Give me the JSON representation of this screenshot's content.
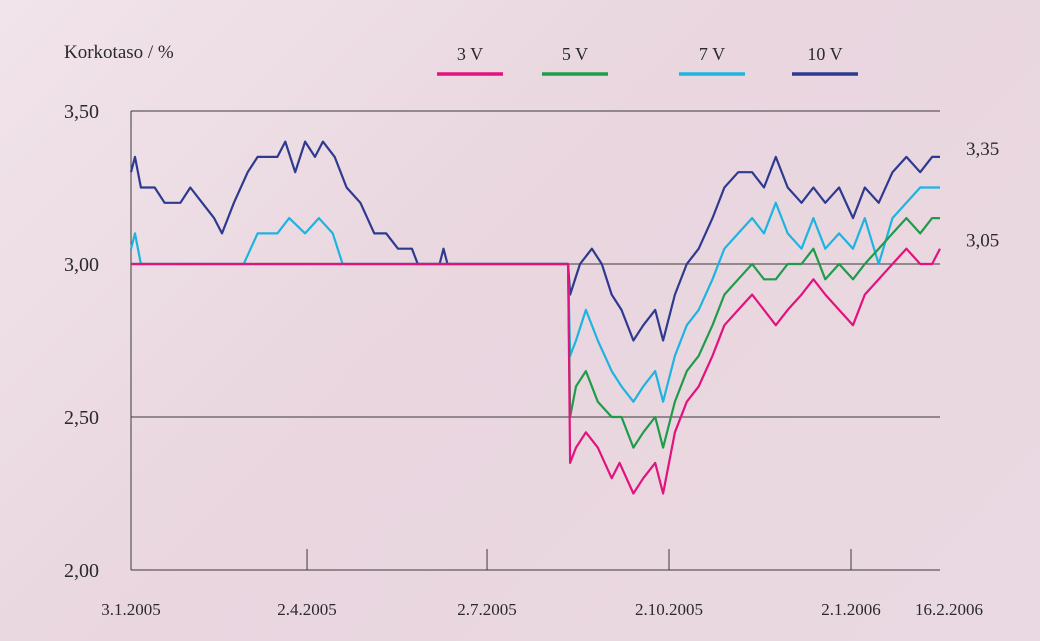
{
  "chart_data": {
    "type": "line",
    "ylabel": "Korkotaso / %",
    "ylim": [
      2.0,
      3.5
    ],
    "y_ticks": [
      "3,50",
      "3,00",
      "2,50",
      "2,00"
    ],
    "y_tick_values": [
      3.5,
      3.0,
      2.5,
      2.0
    ],
    "x_range": [
      "2005-01-03",
      "2006-02-16"
    ],
    "x_ticks": [
      "3.1.2005",
      "2.4.2005",
      "2.7.2005",
      "2.10.2005",
      "2.1.2006",
      "16.2.2006"
    ],
    "x_tick_dates": [
      "2005-01-03",
      "2005-04-02",
      "2005-07-02",
      "2005-10-02",
      "2006-01-02",
      "2006-02-16"
    ],
    "grid": "horizontal",
    "legend_position": "top",
    "end_labels": [
      "3,35",
      "3,05"
    ],
    "end_label_values": [
      3.35,
      3.05
    ],
    "series": [
      {
        "name": "3 V",
        "color": "#e2127e",
        "points": [
          [
            "2005-01-03",
            3.0
          ],
          [
            "2005-08-12",
            3.0
          ],
          [
            "2005-08-13",
            2.35
          ],
          [
            "2005-08-16",
            2.4
          ],
          [
            "2005-08-21",
            2.45
          ],
          [
            "2005-08-27",
            2.4
          ],
          [
            "2005-09-03",
            2.3
          ],
          [
            "2005-09-07",
            2.35
          ],
          [
            "2005-09-14",
            2.25
          ],
          [
            "2005-09-19",
            2.3
          ],
          [
            "2005-09-25",
            2.35
          ],
          [
            "2005-09-29",
            2.25
          ],
          [
            "2005-10-05",
            2.45
          ],
          [
            "2005-10-11",
            2.55
          ],
          [
            "2005-10-17",
            2.6
          ],
          [
            "2005-10-24",
            2.7
          ],
          [
            "2005-10-30",
            2.8
          ],
          [
            "2005-11-06",
            2.85
          ],
          [
            "2005-11-13",
            2.9
          ],
          [
            "2005-11-19",
            2.85
          ],
          [
            "2005-11-25",
            2.8
          ],
          [
            "2005-12-01",
            2.85
          ],
          [
            "2005-12-08",
            2.9
          ],
          [
            "2005-12-14",
            2.95
          ],
          [
            "2005-12-20",
            2.9
          ],
          [
            "2005-12-27",
            2.85
          ],
          [
            "2006-01-03",
            2.8
          ],
          [
            "2006-01-09",
            2.9
          ],
          [
            "2006-01-16",
            2.95
          ],
          [
            "2006-01-23",
            3.0
          ],
          [
            "2006-01-30",
            3.05
          ],
          [
            "2006-02-06",
            3.0
          ],
          [
            "2006-02-12",
            3.0
          ],
          [
            "2006-02-16",
            3.05
          ]
        ]
      },
      {
        "name": "5 V",
        "color": "#1f9c4a",
        "points": [
          [
            "2005-01-03",
            3.0
          ],
          [
            "2005-08-12",
            3.0
          ],
          [
            "2005-08-13",
            2.5
          ],
          [
            "2005-08-16",
            2.6
          ],
          [
            "2005-08-21",
            2.65
          ],
          [
            "2005-08-27",
            2.55
          ],
          [
            "2005-09-03",
            2.5
          ],
          [
            "2005-09-08",
            2.5
          ],
          [
            "2005-09-14",
            2.4
          ],
          [
            "2005-09-19",
            2.45
          ],
          [
            "2005-09-25",
            2.5
          ],
          [
            "2005-09-29",
            2.4
          ],
          [
            "2005-10-05",
            2.55
          ],
          [
            "2005-10-11",
            2.65
          ],
          [
            "2005-10-17",
            2.7
          ],
          [
            "2005-10-24",
            2.8
          ],
          [
            "2005-10-30",
            2.9
          ],
          [
            "2005-11-06",
            2.95
          ],
          [
            "2005-11-13",
            3.0
          ],
          [
            "2005-11-19",
            2.95
          ],
          [
            "2005-11-25",
            2.95
          ],
          [
            "2005-12-01",
            3.0
          ],
          [
            "2005-12-08",
            3.0
          ],
          [
            "2005-12-14",
            3.05
          ],
          [
            "2005-12-20",
            2.95
          ],
          [
            "2005-12-27",
            3.0
          ],
          [
            "2006-01-03",
            2.95
          ],
          [
            "2006-01-09",
            3.0
          ],
          [
            "2006-01-16",
            3.05
          ],
          [
            "2006-01-23",
            3.1
          ],
          [
            "2006-01-30",
            3.15
          ],
          [
            "2006-02-06",
            3.1
          ],
          [
            "2006-02-12",
            3.15
          ],
          [
            "2006-02-16",
            3.15
          ]
        ]
      },
      {
        "name": "7 V",
        "color": "#1fb3e0",
        "points": [
          [
            "2005-01-03",
            3.05
          ],
          [
            "2005-01-05",
            3.1
          ],
          [
            "2005-01-08",
            3.0
          ],
          [
            "2005-03-01",
            3.0
          ],
          [
            "2005-03-08",
            3.1
          ],
          [
            "2005-03-18",
            3.1
          ],
          [
            "2005-03-24",
            3.15
          ],
          [
            "2005-04-01",
            3.1
          ],
          [
            "2005-04-08",
            3.15
          ],
          [
            "2005-04-15",
            3.1
          ],
          [
            "2005-04-20",
            3.0
          ],
          [
            "2005-08-12",
            3.0
          ],
          [
            "2005-08-13",
            2.7
          ],
          [
            "2005-08-16",
            2.75
          ],
          [
            "2005-08-21",
            2.85
          ],
          [
            "2005-08-27",
            2.75
          ],
          [
            "2005-09-03",
            2.65
          ],
          [
            "2005-09-08",
            2.6
          ],
          [
            "2005-09-14",
            2.55
          ],
          [
            "2005-09-19",
            2.6
          ],
          [
            "2005-09-25",
            2.65
          ],
          [
            "2005-09-29",
            2.55
          ],
          [
            "2005-10-05",
            2.7
          ],
          [
            "2005-10-11",
            2.8
          ],
          [
            "2005-10-17",
            2.85
          ],
          [
            "2005-10-24",
            2.95
          ],
          [
            "2005-10-30",
            3.05
          ],
          [
            "2005-11-06",
            3.1
          ],
          [
            "2005-11-13",
            3.15
          ],
          [
            "2005-11-19",
            3.1
          ],
          [
            "2005-11-25",
            3.2
          ],
          [
            "2005-12-01",
            3.1
          ],
          [
            "2005-12-08",
            3.05
          ],
          [
            "2005-12-14",
            3.15
          ],
          [
            "2005-12-20",
            3.05
          ],
          [
            "2005-12-27",
            3.1
          ],
          [
            "2006-01-03",
            3.05
          ],
          [
            "2006-01-09",
            3.15
          ],
          [
            "2006-01-16",
            3.0
          ],
          [
            "2006-01-23",
            3.15
          ],
          [
            "2006-01-30",
            3.2
          ],
          [
            "2006-02-06",
            3.25
          ],
          [
            "2006-02-12",
            3.25
          ],
          [
            "2006-02-16",
            3.25
          ]
        ]
      },
      {
        "name": "10 V",
        "color": "#2e3a8f",
        "points": [
          [
            "2005-01-03",
            3.3
          ],
          [
            "2005-01-05",
            3.35
          ],
          [
            "2005-01-08",
            3.25
          ],
          [
            "2005-01-15",
            3.25
          ],
          [
            "2005-01-20",
            3.2
          ],
          [
            "2005-01-28",
            3.2
          ],
          [
            "2005-02-02",
            3.25
          ],
          [
            "2005-02-08",
            3.2
          ],
          [
            "2005-02-14",
            3.15
          ],
          [
            "2005-02-18",
            3.1
          ],
          [
            "2005-02-24",
            3.2
          ],
          [
            "2005-03-03",
            3.3
          ],
          [
            "2005-03-08",
            3.35
          ],
          [
            "2005-03-18",
            3.35
          ],
          [
            "2005-03-22",
            3.4
          ],
          [
            "2005-03-27",
            3.3
          ],
          [
            "2005-04-01",
            3.4
          ],
          [
            "2005-04-06",
            3.35
          ],
          [
            "2005-04-10",
            3.4
          ],
          [
            "2005-04-16",
            3.35
          ],
          [
            "2005-04-22",
            3.25
          ],
          [
            "2005-04-29",
            3.2
          ],
          [
            "2005-05-06",
            3.1
          ],
          [
            "2005-05-12",
            3.1
          ],
          [
            "2005-05-18",
            3.05
          ],
          [
            "2005-05-25",
            3.05
          ],
          [
            "2005-05-28",
            3.0
          ],
          [
            "2005-06-08",
            3.0
          ],
          [
            "2005-06-10",
            3.05
          ],
          [
            "2005-06-12",
            3.0
          ],
          [
            "2005-08-12",
            3.0
          ],
          [
            "2005-08-13",
            2.9
          ],
          [
            "2005-08-18",
            3.0
          ],
          [
            "2005-08-24",
            3.05
          ],
          [
            "2005-08-29",
            3.0
          ],
          [
            "2005-09-03",
            2.9
          ],
          [
            "2005-09-08",
            2.85
          ],
          [
            "2005-09-14",
            2.75
          ],
          [
            "2005-09-19",
            2.8
          ],
          [
            "2005-09-25",
            2.85
          ],
          [
            "2005-09-29",
            2.75
          ],
          [
            "2005-10-05",
            2.9
          ],
          [
            "2005-10-11",
            3.0
          ],
          [
            "2005-10-17",
            3.05
          ],
          [
            "2005-10-24",
            3.15
          ],
          [
            "2005-10-30",
            3.25
          ],
          [
            "2005-11-06",
            3.3
          ],
          [
            "2005-11-13",
            3.3
          ],
          [
            "2005-11-19",
            3.25
          ],
          [
            "2005-11-25",
            3.35
          ],
          [
            "2005-12-01",
            3.25
          ],
          [
            "2005-12-08",
            3.2
          ],
          [
            "2005-12-14",
            3.25
          ],
          [
            "2005-12-20",
            3.2
          ],
          [
            "2005-12-27",
            3.25
          ],
          [
            "2006-01-03",
            3.15
          ],
          [
            "2006-01-09",
            3.25
          ],
          [
            "2006-01-16",
            3.2
          ],
          [
            "2006-01-23",
            3.3
          ],
          [
            "2006-01-30",
            3.35
          ],
          [
            "2006-02-06",
            3.3
          ],
          [
            "2006-02-12",
            3.35
          ],
          [
            "2006-02-16",
            3.35
          ]
        ]
      }
    ]
  }
}
